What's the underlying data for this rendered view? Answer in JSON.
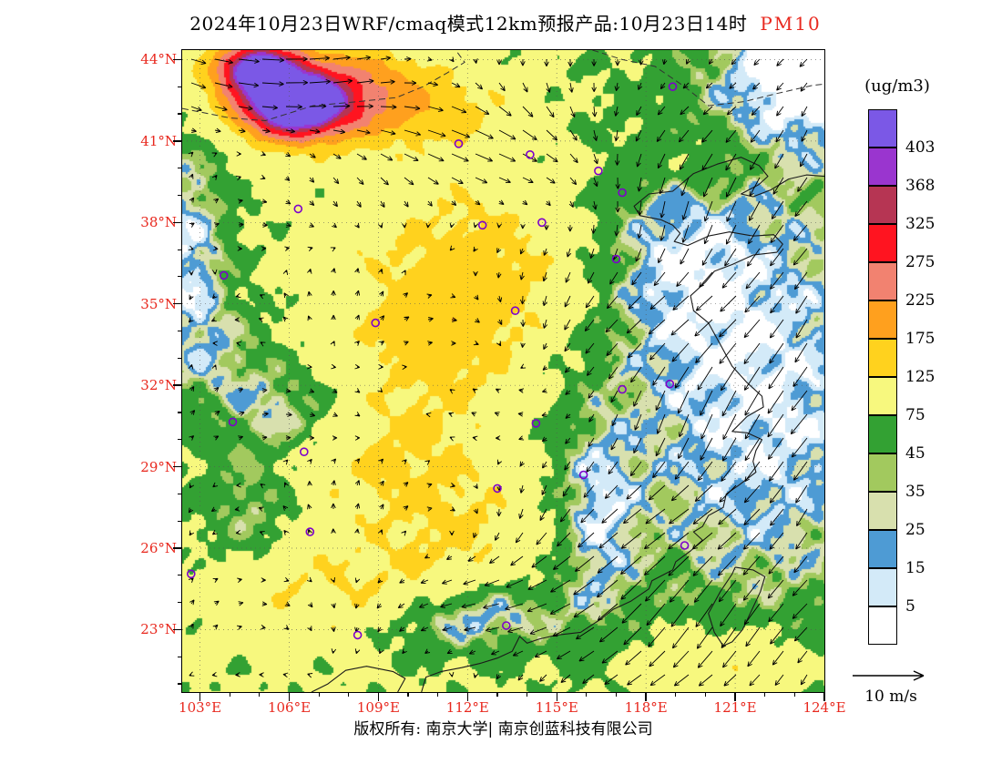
{
  "title": {
    "main": "2024年10月23日WRF/cmaq模式12km预报产品:10月23日14时",
    "pollutant": "PM10"
  },
  "legend": {
    "title": "(ug/m3)"
  },
  "wind_ref": {
    "label": "10 m/s",
    "speed_ms": 10
  },
  "footer": {
    "copyright": "版权所有: 南京大学| 南京创蓝科技有限公司"
  },
  "axes": {
    "lat_tick_labels": [
      "44°N",
      "41°N",
      "38°N",
      "35°N",
      "32°N",
      "29°N",
      "26°N",
      "23°N"
    ],
    "lat_tick_values": [
      44,
      41,
      38,
      35,
      32,
      29,
      26,
      23
    ],
    "lon_tick_labels": [
      "103°E",
      "106°E",
      "109°E",
      "112°E",
      "115°E",
      "118°E",
      "121°E",
      "124°E"
    ],
    "lon_tick_values": [
      103,
      106,
      109,
      112,
      115,
      118,
      121,
      124
    ],
    "label_color": "#e8281e"
  },
  "chart_data": {
    "type": "heatmap",
    "title": "2024年10月23日WRF/cmaq模式12km预报产品:10月23日14时 PM10",
    "pollutant": "PM10",
    "units": "ug/m3",
    "lon_range": [
      102.4,
      124.0
    ],
    "lat_range": [
      20.7,
      44.35
    ],
    "levels": [
      5,
      15,
      25,
      35,
      45,
      75,
      125,
      175,
      225,
      275,
      325,
      368,
      403
    ],
    "bin_colors": [
      "#ffffff",
      "#d3eaf8",
      "#4e9bd4",
      "#d8e0ae",
      "#a2c95e",
      "#33a133",
      "#f7f87e",
      "#ffd21e",
      "#ffa01e",
      "#f28270",
      "#ff1420",
      "#b63553",
      "#9a35cf",
      "#7b58e6"
    ],
    "wind_reference_speed_ms": 10,
    "city_marker_color": "#7d00cc",
    "arrow_color": "#000000",
    "line_colors": {
      "coast": "#1a1a1a",
      "border": "#333333",
      "graticule": "#555555"
    },
    "field_base": 82,
    "field_blobs": [
      [
        106.2,
        42.35,
        1.15,
        0.8,
        400
      ],
      [
        104.9,
        43.7,
        0.85,
        0.6,
        330
      ],
      [
        106.9,
        42.9,
        2.3,
        1.15,
        150
      ],
      [
        110.0,
        42.2,
        2.2,
        1.0,
        60
      ],
      [
        113.0,
        37.0,
        3.2,
        2.4,
        52
      ],
      [
        111.2,
        33.8,
        2.3,
        2.0,
        55
      ],
      [
        109.8,
        29.2,
        2.4,
        1.8,
        45
      ],
      [
        112.5,
        26.3,
        2.7,
        1.6,
        40
      ],
      [
        107.4,
        24.3,
        2.7,
        1.3,
        42
      ],
      [
        121.8,
        31.5,
        3.9,
        6.6,
        -78
      ],
      [
        123.6,
        43.8,
        2.3,
        2.1,
        -95
      ],
      [
        102.6,
        36.8,
        1.0,
        3.3,
        -72
      ],
      [
        104.0,
        33.0,
        1.2,
        1.6,
        -35
      ],
      [
        105.9,
        31.1,
        1.25,
        1.1,
        -55
      ],
      [
        104.6,
        27.6,
        1.1,
        1.5,
        -48
      ],
      [
        116.3,
        26.8,
        1.0,
        2.6,
        -65
      ],
      [
        113.0,
        23.6,
        1.6,
        0.95,
        -58
      ],
      [
        118.6,
        36.9,
        2.0,
        2.5,
        -46
      ],
      [
        120.0,
        40.3,
        1.35,
        0.95,
        30
      ],
      [
        120.7,
        21.7,
        2.2,
        1.1,
        55
      ],
      [
        110.6,
        23.1,
        1.6,
        0.85,
        -35
      ]
    ],
    "field_noise": [
      [
        2.15,
        2.55,
        0.3,
        1.2,
        13
      ],
      [
        4.7,
        3.9,
        1.4,
        0.5,
        9
      ],
      [
        7.1,
        6.3,
        2.2,
        2.7,
        6
      ]
    ],
    "wind_zones": [
      [
        121.5,
        32.0,
        4.3,
        9.0,
        -5.4,
        -7.6
      ],
      [
        105.5,
        43.2,
        3.2,
        1.6,
        7.5,
        -0.6
      ],
      [
        113.0,
        40.6,
        3.5,
        1.8,
        5.2,
        -2.6
      ],
      [
        109.0,
        31.0,
        3.4,
        3.4,
        1.1,
        0.9
      ],
      [
        116.5,
        24.2,
        3.6,
        2.0,
        -6.2,
        -3.2
      ]
    ],
    "wind_ambient_amp": 1.6,
    "cities": [
      [
        111.7,
        40.9
      ],
      [
        116.4,
        39.9
      ],
      [
        117.2,
        39.1
      ],
      [
        114.5,
        38.0
      ],
      [
        112.5,
        37.9
      ],
      [
        106.3,
        38.5
      ],
      [
        103.8,
        36.05
      ],
      [
        108.9,
        34.3
      ],
      [
        113.6,
        34.75
      ],
      [
        117.0,
        36.65
      ],
      [
        114.3,
        30.6
      ],
      [
        117.2,
        31.85
      ],
      [
        118.8,
        32.05
      ],
      [
        104.1,
        30.65
      ],
      [
        106.5,
        29.55
      ],
      [
        113.0,
        28.2
      ],
      [
        115.9,
        28.7
      ],
      [
        106.7,
        26.6
      ],
      [
        102.7,
        25.05
      ],
      [
        119.3,
        26.1
      ],
      [
        113.3,
        23.15
      ],
      [
        108.3,
        22.8
      ],
      [
        118.9,
        43.0
      ],
      [
        114.1,
        40.5
      ]
    ],
    "coast_segments": [
      [
        [
          124,
          39.7
        ],
        [
          123.4,
          39.75
        ],
        [
          122.8,
          39.6
        ],
        [
          122.2,
          39.2
        ],
        [
          121.6,
          38.95
        ],
        [
          121.2,
          39.05
        ],
        [
          121.8,
          39.4
        ],
        [
          122.1,
          39.7
        ],
        [
          121.8,
          40.1
        ],
        [
          121.2,
          40.4
        ],
        [
          120.4,
          40.15
        ],
        [
          119.6,
          39.8
        ],
        [
          118.9,
          39.15
        ],
        [
          118.1,
          39.05
        ],
        [
          117.6,
          38.6
        ],
        [
          117.8,
          38.25
        ],
        [
          118.5,
          38.1
        ],
        [
          118.9,
          37.9
        ],
        [
          119.15,
          37.6
        ],
        [
          118.95,
          37.3
        ],
        [
          119.4,
          37.15
        ],
        [
          120.1,
          37.5
        ],
        [
          120.8,
          37.65
        ],
        [
          121.6,
          37.5
        ],
        [
          122.3,
          37.55
        ],
        [
          122.6,
          37.2
        ],
        [
          122.4,
          36.9
        ],
        [
          121.6,
          36.8
        ],
        [
          120.9,
          36.45
        ],
        [
          120.3,
          36.2
        ],
        [
          120.0,
          35.8
        ],
        [
          119.5,
          35.3
        ],
        [
          119.6,
          34.75
        ],
        [
          120.1,
          34.3
        ],
        [
          120.5,
          33.5
        ],
        [
          120.9,
          32.7
        ],
        [
          121.4,
          32.1
        ],
        [
          121.9,
          31.6
        ],
        [
          121.95,
          31.2
        ],
        [
          121.4,
          30.85
        ],
        [
          120.9,
          30.3
        ],
        [
          121.4,
          30.25
        ],
        [
          121.9,
          30.0
        ],
        [
          121.7,
          29.6
        ],
        [
          121.6,
          29.2
        ],
        [
          121.7,
          28.8
        ],
        [
          121.1,
          28.3
        ],
        [
          120.7,
          28.0
        ],
        [
          120.6,
          27.5
        ],
        [
          120.1,
          27.2
        ],
        [
          119.9,
          26.8
        ],
        [
          119.6,
          26.6
        ],
        [
          119.9,
          26.3
        ],
        [
          119.5,
          25.9
        ],
        [
          119.0,
          25.5
        ],
        [
          118.9,
          25.2
        ],
        [
          118.2,
          24.8
        ],
        [
          118.1,
          24.5
        ],
        [
          117.5,
          24.05
        ],
        [
          116.9,
          23.75
        ],
        [
          116.5,
          23.4
        ],
        [
          115.8,
          22.9
        ],
        [
          115.0,
          22.8
        ],
        [
          114.4,
          22.65
        ],
        [
          114.0,
          22.5
        ],
        [
          113.75,
          22.75
        ],
        [
          113.5,
          22.2
        ],
        [
          113.0,
          21.95
        ],
        [
          112.4,
          21.75
        ],
        [
          111.8,
          21.6
        ],
        [
          111.1,
          21.45
        ],
        [
          110.6,
          21.25
        ],
        [
          110.45,
          20.7
        ]
      ],
      [
        [
          109.65,
          20.7
        ],
        [
          109.9,
          21.2
        ],
        [
          109.5,
          21.45
        ],
        [
          108.6,
          21.65
        ],
        [
          107.9,
          21.5
        ],
        [
          107.3,
          21.0
        ],
        [
          106.75,
          20.7
        ]
      ],
      [
        [
          121.0,
          25.3
        ],
        [
          121.6,
          25.2
        ],
        [
          122.0,
          24.95
        ],
        [
          121.85,
          24.4
        ],
        [
          121.55,
          23.7
        ],
        [
          121.25,
          23.0
        ],
        [
          120.9,
          22.55
        ],
        [
          120.6,
          22.4
        ],
        [
          120.3,
          22.9
        ],
        [
          120.1,
          23.6
        ],
        [
          120.5,
          24.4
        ],
        [
          120.9,
          25.05
        ],
        [
          121.0,
          25.3
        ]
      ]
    ],
    "borders": [
      [
        [
          102.4,
          42.2
        ],
        [
          104.0,
          41.85
        ],
        [
          105.2,
          41.75
        ],
        [
          106.8,
          42.3
        ],
        [
          108.3,
          42.45
        ],
        [
          109.6,
          42.6
        ],
        [
          110.5,
          43.0
        ],
        [
          111.3,
          43.5
        ],
        [
          111.9,
          43.9
        ],
        [
          111.6,
          44.35
        ]
      ],
      [
        [
          116.2,
          44.35
        ],
        [
          117.2,
          44.0
        ],
        [
          118.3,
          43.75
        ],
        [
          119.3,
          43.0
        ],
        [
          120.1,
          42.3
        ],
        [
          121.3,
          42.45
        ],
        [
          122.4,
          42.75
        ],
        [
          123.6,
          43.05
        ],
        [
          124.0,
          43.1
        ]
      ]
    ]
  }
}
